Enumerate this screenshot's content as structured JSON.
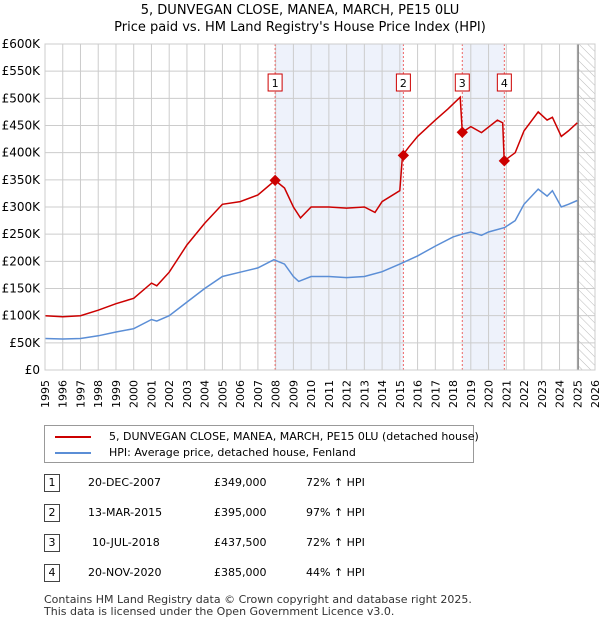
{
  "chart_data": {
    "type": "line",
    "title": "5, DUNVEGAN CLOSE, MANEA, MARCH, PE15 0LU",
    "subtitle": "Price paid vs. HM Land Registry's House Price Index (HPI)",
    "xlim": [
      1995,
      2026
    ],
    "ylim": [
      0,
      600000
    ],
    "x_ticks": [
      "1995",
      "1996",
      "1997",
      "1998",
      "1999",
      "2000",
      "2001",
      "2002",
      "2003",
      "2004",
      "2005",
      "2006",
      "2007",
      "2008",
      "2009",
      "2010",
      "2011",
      "2012",
      "2013",
      "2014",
      "2015",
      "2016",
      "2017",
      "2018",
      "2019",
      "2020",
      "2021",
      "2022",
      "2023",
      "2024",
      "2025",
      "2026"
    ],
    "y_ticks": [
      "£0",
      "£50K",
      "£100K",
      "£150K",
      "£200K",
      "£250K",
      "£300K",
      "£350K",
      "£400K",
      "£450K",
      "£500K",
      "£550K",
      "£600K"
    ],
    "grid": true,
    "series": [
      {
        "name": "5, DUNVEGAN CLOSE, MANEA, MARCH, PE15 0LU (detached house)",
        "color": "#cc0000",
        "x": [
          1995,
          1996,
          1997,
          1998,
          1999,
          2000,
          2001,
          2001.3,
          2002,
          2003,
          2004,
          2005,
          2006,
          2007,
          2007.97,
          2008.5,
          2009,
          2009.4,
          2010,
          2011,
          2012,
          2013,
          2013.6,
          2014,
          2015,
          2015.15,
          2015.5,
          2016,
          2017,
          2017.7,
          2018.4,
          2018.52,
          2019,
          2019.6,
          2020.5,
          2020.8,
          2020.88,
          2021.5,
          2022,
          2022.8,
          2023.3,
          2023.6,
          2024.1,
          2024.5,
          2025
        ],
        "y": [
          100000,
          98000,
          100000,
          110000,
          122000,
          132000,
          160000,
          155000,
          180000,
          230000,
          270000,
          305000,
          310000,
          322000,
          349000,
          335000,
          300000,
          280000,
          300000,
          300000,
          298000,
          300000,
          290000,
          310000,
          330000,
          395000,
          410000,
          430000,
          460000,
          480000,
          502000,
          437500,
          448000,
          437000,
          460000,
          455000,
          385000,
          400000,
          440000,
          475000,
          460000,
          465000,
          430000,
          440000,
          455000
        ]
      },
      {
        "name": "HPI: Average price, detached house, Fenland",
        "color": "#5b8ed6",
        "x": [
          1995,
          1996,
          1997,
          1998,
          1999,
          2000,
          2001,
          2001.3,
          2002,
          2003,
          2004,
          2005,
          2006,
          2007,
          2007.9,
          2008.5,
          2009,
          2009.3,
          2010,
          2011,
          2012,
          2013,
          2014,
          2015,
          2016,
          2017,
          2018,
          2018.5,
          2019,
          2019.6,
          2020,
          2020.9,
          2021.5,
          2022,
          2022.8,
          2023.3,
          2023.6,
          2024.1,
          2024.5,
          2025
        ],
        "y": [
          58000,
          57000,
          58000,
          63000,
          70000,
          76000,
          93000,
          90000,
          100000,
          125000,
          150000,
          172000,
          180000,
          188000,
          203000,
          195000,
          172000,
          163000,
          172000,
          172000,
          170000,
          172000,
          181000,
          195000,
          210000,
          228000,
          245000,
          250000,
          254000,
          248000,
          254000,
          262000,
          275000,
          305000,
          333000,
          320000,
          330000,
          300000,
          305000,
          312000
        ]
      }
    ],
    "sales": [
      {
        "num": "1",
        "x": 2007.97,
        "date": "20-DEC-2007",
        "price": "£349,000",
        "value": 349000,
        "hpi": "72% ↑ HPI"
      },
      {
        "num": "2",
        "x": 2015.2,
        "date": "13-MAR-2015",
        "price": "£395,000",
        "value": 395000,
        "hpi": "97% ↑ HPI"
      },
      {
        "num": "3",
        "x": 2018.52,
        "date": "10-JUL-2018",
        "price": "£437,500",
        "value": 437500,
        "hpi": "72% ↑ HPI"
      },
      {
        "num": "4",
        "x": 2020.89,
        "date": "20-NOV-2020",
        "price": "£385,000",
        "value": 385000,
        "hpi": "44% ↑ HPI"
      }
    ],
    "shaded_ranges": [
      [
        2007.97,
        2015.2
      ],
      [
        2018.52,
        2020.89
      ]
    ],
    "forecast_from": 2025.05
  },
  "footer": {
    "line1": "Contains HM Land Registry data © Crown copyright and database right 2025.",
    "line2": "This data is licensed under the Open Government Licence v3.0."
  }
}
